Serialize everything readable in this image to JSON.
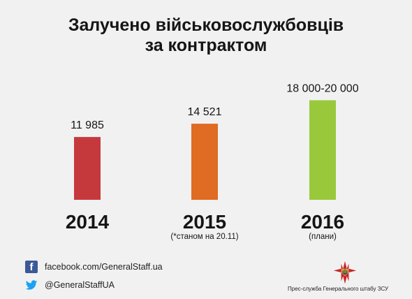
{
  "title": {
    "line1": "Залучено військовослужбовців",
    "line2": "за контрактом"
  },
  "chart_data": {
    "type": "bar",
    "title": "Залучено військовослужбовців за контрактом",
    "categories": [
      "2014",
      "2015",
      "2016"
    ],
    "values": [
      11985,
      14521,
      19000
    ],
    "value_labels": [
      "11 985",
      "14 521",
      "18 000-20 000"
    ],
    "notes": [
      "",
      "(*станом на 20.11)",
      "(плани)"
    ],
    "colors": [
      "#c5393d",
      "#e06b22",
      "#99c93b"
    ],
    "ylim": [
      0,
      20000
    ],
    "grid": false,
    "legend": "none"
  },
  "footer": {
    "facebook_icon": "facebook-icon",
    "facebook": "facebook.com/GeneralStaff.ua",
    "twitter_icon": "twitter-icon",
    "twitter": "@GeneralStaffUA",
    "emblem_icon": "general-staff-emblem-icon",
    "press": "Прес-служба Генерального штабу ЗСУ"
  }
}
